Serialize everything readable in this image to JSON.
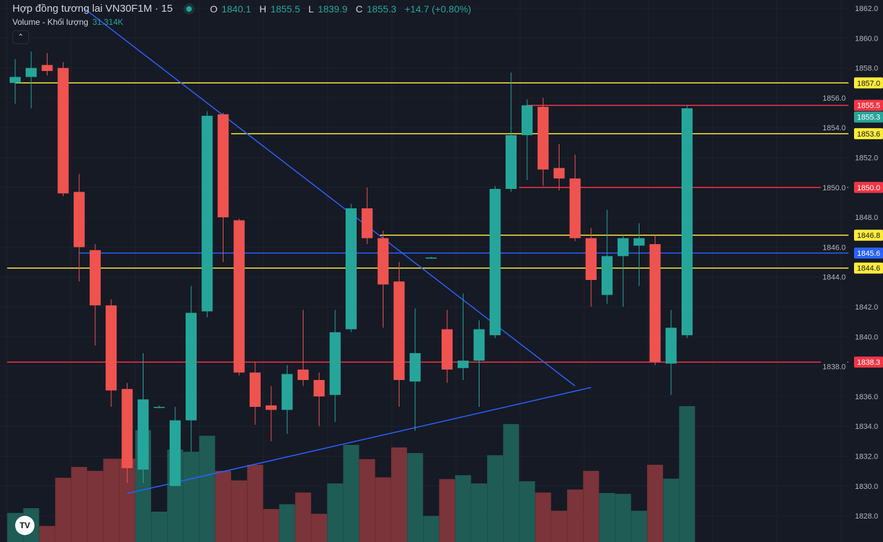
{
  "header": {
    "title": "Hợp đồng tương lai VN30F1M · 15",
    "o_label": "O",
    "o": "1840.1",
    "h_label": "H",
    "h": "1855.5",
    "l_label": "L",
    "l": "1839.9",
    "c_label": "C",
    "c": "1855.3",
    "change": "+14.7 (+0.80%)",
    "volume_label": "Volume - Khối lượng",
    "volume_value": "31.314K",
    "collapse_icon": "chevron-up-icon"
  },
  "logo": "TV",
  "colors": {
    "up": "#26a69a",
    "down": "#ef5350",
    "vol_up": "#1f5c55",
    "vol_down": "#7b3439",
    "yellow": "#ffeb3b",
    "red_line": "#f23645",
    "blue_line": "#2962ff",
    "background": "#161a25"
  },
  "chart_data": {
    "type": "candlestick",
    "ylim": [
      1827,
      1862.5
    ],
    "yticks": [
      "1862.0",
      "1860.0",
      "1858.0",
      "1856.0",
      "1854.0",
      "1852.0",
      "1850.0",
      "1848.0",
      "1846.0",
      "1844.0",
      "1842.0",
      "1840.0",
      "1838.0",
      "1836.0",
      "1834.0",
      "1832.0",
      "1830.0",
      "1828.0"
    ],
    "grid": true,
    "candles": [
      [
        1857.0,
        1858.6,
        1855.6,
        1857.4
      ],
      [
        1857.4,
        1859.1,
        1855.3,
        1858.0
      ],
      [
        1858.2,
        1859.0,
        1857.5,
        1857.8
      ],
      [
        1858.0,
        1858.4,
        1849.4,
        1849.6
      ],
      [
        1849.7,
        1850.9,
        1843.7,
        1846.0
      ],
      [
        1845.8,
        1846.2,
        1839.4,
        1842.1
      ],
      [
        1842.1,
        1842.5,
        1835.3,
        1836.4
      ],
      [
        1836.5,
        1836.9,
        1830.2,
        1831.2
      ],
      [
        1831.1,
        1838.9,
        1830.2,
        1835.8
      ],
      [
        1835.3,
        1835.4,
        1835.2,
        1835.3
      ],
      [
        1830.0,
        1835.3,
        1830.0,
        1834.4
      ],
      [
        1834.4,
        1843.4,
        1832.3,
        1841.6
      ],
      [
        1841.7,
        1855.1,
        1841.3,
        1854.8
      ],
      [
        1854.9,
        1855.0,
        1845.0,
        1848.0
      ],
      [
        1847.8,
        1847.9,
        1837.4,
        1837.6
      ],
      [
        1837.6,
        1838.3,
        1834.1,
        1835.3
      ],
      [
        1835.4,
        1836.7,
        1833.0,
        1835.1
      ],
      [
        1835.1,
        1838.1,
        1833.5,
        1837.5
      ],
      [
        1837.8,
        1841.8,
        1836.7,
        1837.1
      ],
      [
        1837.1,
        1837.6,
        1834.0,
        1836.0
      ],
      [
        1836.1,
        1841.8,
        1834.3,
        1840.3
      ],
      [
        1840.5,
        1848.9,
        1840.3,
        1848.6
      ],
      [
        1848.6,
        1850.0,
        1846.2,
        1846.6
      ],
      [
        1846.6,
        1847.1,
        1840.6,
        1843.5
      ],
      [
        1843.7,
        1845.0,
        1835.3,
        1837.1
      ],
      [
        1837.0,
        1841.9,
        1833.7,
        1838.9
      ],
      [
        1845.3,
        1845.35,
        1845.25,
        1845.3
      ],
      [
        1840.5,
        1841.8,
        1836.9,
        1837.8
      ],
      [
        1837.9,
        1842.9,
        1837.1,
        1838.4
      ],
      [
        1838.4,
        1841.1,
        1835.3,
        1840.5
      ],
      [
        1840.1,
        1850.1,
        1839.9,
        1849.9
      ],
      [
        1849.9,
        1857.7,
        1849.7,
        1853.5
      ],
      [
        1853.5,
        1855.9,
        1850.5,
        1855.5
      ],
      [
        1855.4,
        1856.0,
        1850.1,
        1851.2
      ],
      [
        1851.3,
        1852.9,
        1849.8,
        1850.6
      ],
      [
        1850.6,
        1852.2,
        1846.4,
        1846.6
      ],
      [
        1846.6,
        1847.3,
        1842.0,
        1843.8
      ],
      [
        1842.8,
        1848.5,
        1842.2,
        1845.4
      ],
      [
        1845.4,
        1846.8,
        1842.0,
        1846.6
      ],
      [
        1846.1,
        1847.6,
        1843.4,
        1846.6
      ],
      [
        1846.2,
        1846.8,
        1838.1,
        1838.3
      ],
      [
        1838.2,
        1841.8,
        1836.1,
        1840.6
      ],
      [
        1840.1,
        1855.5,
        1839.9,
        1855.3
      ]
    ],
    "candle_fields": [
      "open",
      "high",
      "low",
      "close"
    ],
    "volume_k": [
      6.7,
      7.8,
      3.7,
      14.8,
      17.3,
      16.4,
      19.2,
      19.2,
      25.8,
      7.0,
      21.3,
      20.8,
      24.5,
      16.4,
      14.2,
      17.8,
      7.6,
      8.7,
      11.4,
      6.5,
      13.5,
      22.4,
      19.1,
      14.9,
      21.8,
      20.5,
      6.0,
      14.5,
      15.4,
      13.5,
      20.0,
      27.2,
      14.0,
      11.4,
      7.2,
      12.1,
      16.4,
      11.3,
      11.1,
      7.2,
      17.8,
      14.6,
      31.314
    ],
    "horizontal_lines": [
      {
        "price": 1857.0,
        "label": "1857.0",
        "color": "yellow",
        "from_candle": 0
      },
      {
        "price": 1855.5,
        "label": "1855.5",
        "color": "red",
        "from_candle": 32
      },
      {
        "price": 1853.6,
        "label": "1853.6",
        "color": "yellow",
        "from_candle": 13.5
      },
      {
        "price": 1850.0,
        "label": "1850.0",
        "color": "red",
        "from_candle": 31.5
      },
      {
        "price": 1846.8,
        "label": "1846.8",
        "color": "yellow",
        "from_candle": 22.8
      },
      {
        "price": 1845.6,
        "label": "1845.6",
        "color": "blue",
        "from_candle": 4
      },
      {
        "price": 1844.6,
        "label": "1844.6",
        "color": "yellow",
        "from_candle": -0.5
      },
      {
        "price": 1838.3,
        "label": "1838.3",
        "color": "red",
        "from_candle": -0.5
      }
    ],
    "last_price": {
      "label": "1855.3",
      "price": 1855.3
    },
    "trend_lines": [
      {
        "from": [
          4.3,
          1862.0
        ],
        "to": [
          35,
          1836.7
        ]
      },
      {
        "from": [
          7,
          1829.5
        ],
        "to": [
          36,
          1836.6
        ]
      }
    ]
  }
}
